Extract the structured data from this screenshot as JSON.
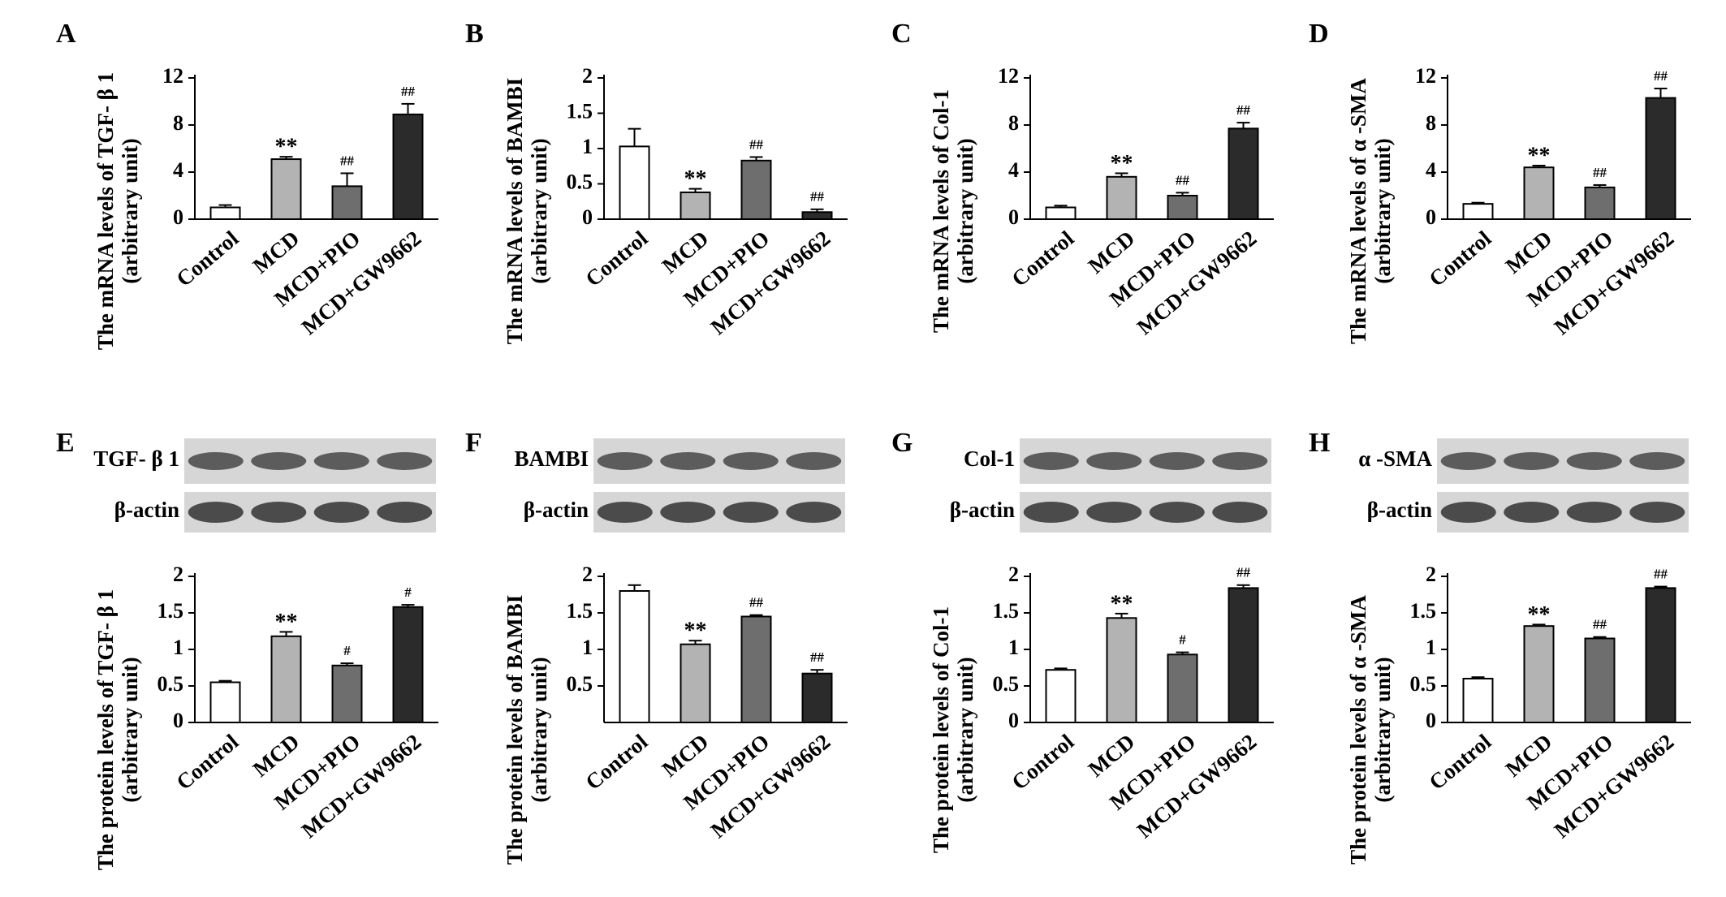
{
  "chart_data": [
    {
      "type": "bar",
      "panel": "A",
      "ylabel": [
        "The mRNA levels of TGF- β 1",
        "(arbitrary unit)"
      ],
      "categories": [
        "Control",
        "MCD",
        "MCD+PIO",
        "MCD+GW9662"
      ],
      "values": [
        1.0,
        5.1,
        2.8,
        8.9
      ],
      "errors": [
        0.2,
        0.2,
        1.1,
        0.9
      ],
      "annotations": [
        null,
        "**",
        "##",
        "##"
      ],
      "colors": [
        "#ffffff",
        "#b3b3b3",
        "#6e6e6e",
        "#2b2b2b"
      ],
      "ylim": [
        0,
        12
      ],
      "yticks": [
        0,
        4,
        8,
        12
      ]
    },
    {
      "type": "bar",
      "panel": "B",
      "ylabel": [
        "The mRNA levels of BAMBI",
        "(arbitrary unit)"
      ],
      "categories": [
        "Control",
        "MCD",
        "MCD+PIO",
        "MCD+GW9662"
      ],
      "values": [
        1.03,
        0.38,
        0.83,
        0.1
      ],
      "errors": [
        0.25,
        0.05,
        0.05,
        0.04
      ],
      "annotations": [
        null,
        "**",
        "##",
        "##"
      ],
      "colors": [
        "#ffffff",
        "#b3b3b3",
        "#6e6e6e",
        "#2b2b2b"
      ],
      "ylim": [
        0,
        2
      ],
      "yticks": [
        0,
        0.5,
        1,
        1.5,
        2
      ]
    },
    {
      "type": "bar",
      "panel": "C",
      "ylabel": [
        "The mRNA levels of Col-1",
        "(arbitrary unit)"
      ],
      "categories": [
        "Control",
        "MCD",
        "MCD+PIO",
        "MCD+GW9662"
      ],
      "values": [
        1.0,
        3.6,
        2.0,
        7.7
      ],
      "errors": [
        0.15,
        0.3,
        0.25,
        0.5
      ],
      "annotations": [
        null,
        "**",
        "##",
        "##"
      ],
      "colors": [
        "#ffffff",
        "#b3b3b3",
        "#6e6e6e",
        "#2b2b2b"
      ],
      "ylim": [
        0,
        12
      ],
      "yticks": [
        0,
        4,
        8,
        12
      ]
    },
    {
      "type": "bar",
      "panel": "D",
      "ylabel": [
        "The mRNA levels of α -SMA",
        "(arbitrary unit)"
      ],
      "categories": [
        "Control",
        "MCD",
        "MCD+PIO",
        "MCD+GW9662"
      ],
      "values": [
        1.3,
        4.4,
        2.7,
        10.3
      ],
      "errors": [
        0.1,
        0.15,
        0.2,
        0.8
      ],
      "annotations": [
        null,
        "**",
        "##",
        "##"
      ],
      "colors": [
        "#ffffff",
        "#b3b3b3",
        "#6e6e6e",
        "#2b2b2b"
      ],
      "ylim": [
        0,
        12
      ],
      "yticks": [
        0,
        4,
        8,
        12
      ]
    },
    {
      "type": "bar",
      "panel": "E",
      "blot_labels": [
        "TGF- β 1",
        "β-actin"
      ],
      "ylabel": [
        "The protein levels of TGF- β 1",
        "(arbitrary unit)"
      ],
      "categories": [
        "Control",
        "MCD",
        "MCD+PIO",
        "MCD+GW9662"
      ],
      "values": [
        0.55,
        1.18,
        0.78,
        1.58
      ],
      "errors": [
        0.02,
        0.06,
        0.03,
        0.03
      ],
      "annotations": [
        null,
        "**",
        "#",
        "#"
      ],
      "colors": [
        "#ffffff",
        "#b3b3b3",
        "#6e6e6e",
        "#2b2b2b"
      ],
      "ylim": [
        0,
        2
      ],
      "yticks": [
        0,
        0.5,
        1,
        1.5,
        2
      ]
    },
    {
      "type": "bar",
      "panel": "F",
      "blot_labels": [
        "BAMBI",
        "β-actin"
      ],
      "ylabel": [
        "The protein levels of BAMBI",
        "(arbitrary unit)"
      ],
      "categories": [
        "Control",
        "MCD",
        "MCD+PIO",
        "MCD+GW9662"
      ],
      "values": [
        1.8,
        1.07,
        1.45,
        0.67
      ],
      "errors": [
        0.08,
        0.05,
        0.02,
        0.05
      ],
      "annotations": [
        null,
        "**",
        "##",
        "##"
      ],
      "colors": [
        "#ffffff",
        "#b3b3b3",
        "#6e6e6e",
        "#2b2b2b"
      ],
      "ylim": [
        0,
        2
      ],
      "yticks": [
        0.5,
        1,
        1.5,
        2
      ]
    },
    {
      "type": "bar",
      "panel": "G",
      "blot_labels": [
        "Col-1",
        "β-actin"
      ],
      "ylabel": [
        "The protein levels of Col-1",
        "(arbitrary unit)"
      ],
      "categories": [
        "Control",
        "MCD",
        "MCD+PIO",
        "MCD+GW9662"
      ],
      "values": [
        0.72,
        1.43,
        0.93,
        1.84
      ],
      "errors": [
        0.02,
        0.06,
        0.03,
        0.04
      ],
      "annotations": [
        null,
        "**",
        "#",
        "##"
      ],
      "colors": [
        "#ffffff",
        "#b3b3b3",
        "#6e6e6e",
        "#2b2b2b"
      ],
      "ylim": [
        0,
        2
      ],
      "yticks": [
        0,
        0.5,
        1,
        1.5,
        2
      ]
    },
    {
      "type": "bar",
      "panel": "H",
      "blot_labels": [
        "α -SMA",
        "β-actin"
      ],
      "ylabel": [
        "The protein levels of α -SMA",
        "(arbitrary unit)"
      ],
      "categories": [
        "Control",
        "MCD",
        "MCD+PIO",
        "MCD+GW9662"
      ],
      "values": [
        0.6,
        1.32,
        1.15,
        1.84
      ],
      "errors": [
        0.02,
        0.02,
        0.02,
        0.02
      ],
      "annotations": [
        null,
        "**",
        "##",
        "##"
      ],
      "colors": [
        "#ffffff",
        "#b3b3b3",
        "#6e6e6e",
        "#2b2b2b"
      ],
      "ylim": [
        0,
        2
      ],
      "yticks": [
        0,
        0.5,
        1,
        1.5,
        2
      ]
    }
  ]
}
